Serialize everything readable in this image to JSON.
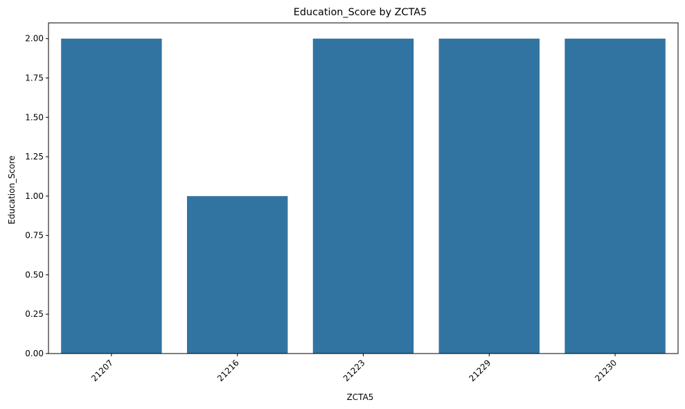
{
  "chart_data": {
    "type": "bar",
    "title": "Education_Score by ZCTA5",
    "xlabel": "ZCTA5",
    "ylabel": "Education_Score",
    "categories": [
      "21207",
      "21216",
      "21223",
      "21229",
      "21230"
    ],
    "values": [
      2,
      1,
      2,
      2,
      2
    ],
    "ylim": [
      0,
      2.1
    ],
    "yticks": [
      "0.00",
      "0.25",
      "0.50",
      "0.75",
      "1.00",
      "1.25",
      "1.50",
      "1.75",
      "2.00"
    ],
    "grid": false,
    "legend": "none",
    "bar_color": "#3274a1"
  }
}
